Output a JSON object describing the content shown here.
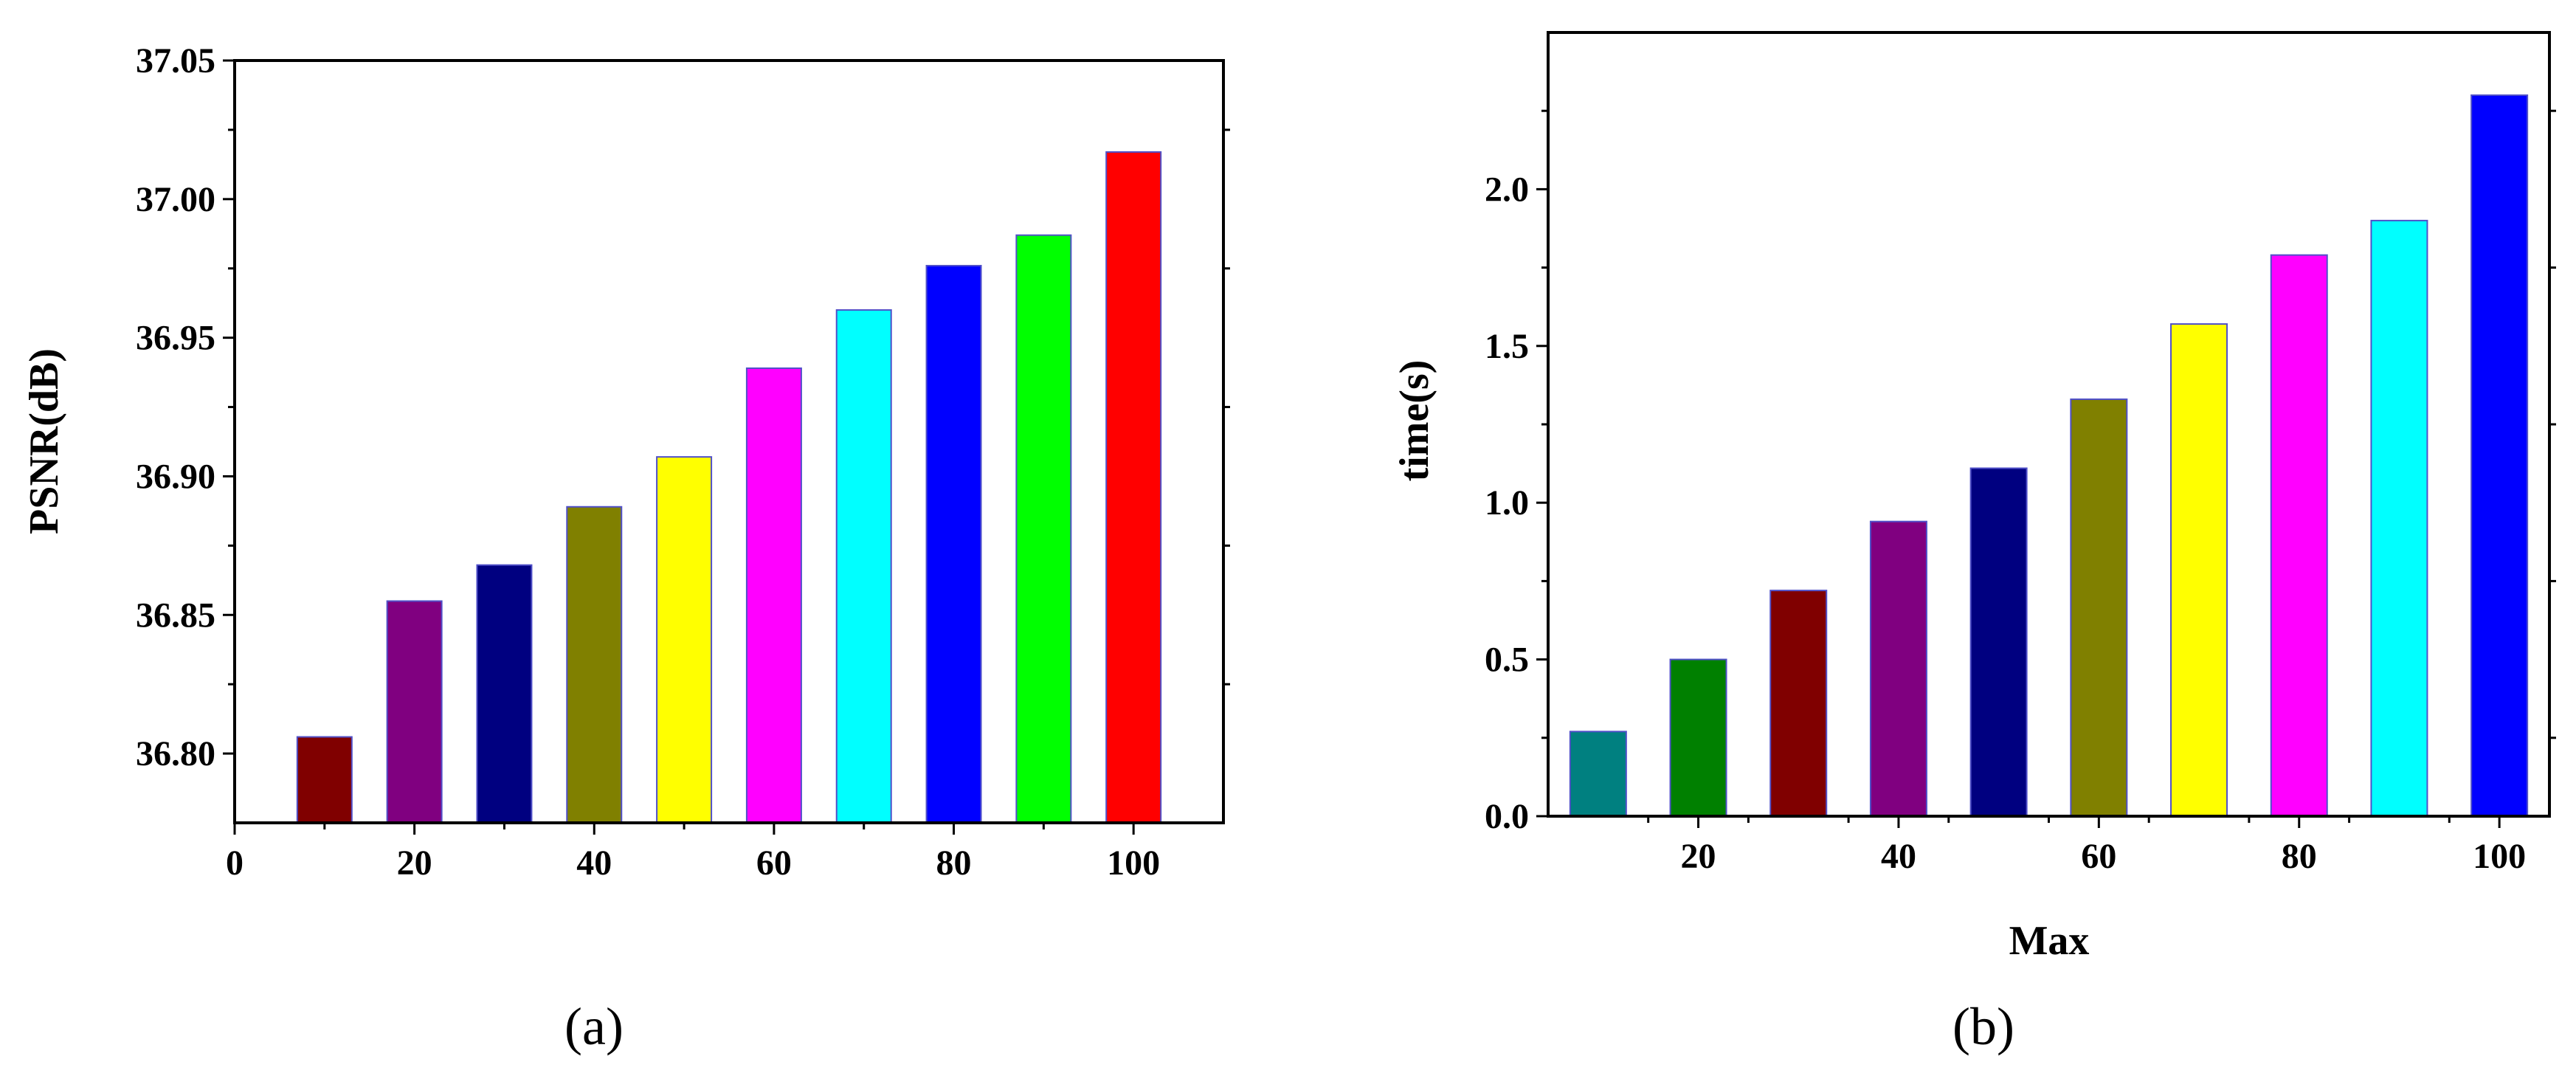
{
  "chart_data": [
    {
      "type": "bar",
      "panel_label": "(a)",
      "title": "",
      "xlabel": "",
      "ylabel": "PSNR(dB)",
      "x": [
        10,
        20,
        30,
        40,
        50,
        60,
        70,
        80,
        90,
        100
      ],
      "values": [
        36.806,
        36.855,
        36.868,
        36.889,
        36.907,
        36.939,
        36.96,
        36.976,
        36.987,
        37.017
      ],
      "colors": [
        "#800000",
        "#800080",
        "#000080",
        "#808000",
        "#ffff00",
        "#ff00ff",
        "#00ffff",
        "#0000ff",
        "#00ff00",
        "#ff0000"
      ],
      "xlim": [
        0,
        110
      ],
      "ylim": [
        36.775,
        37.05
      ],
      "xticks": [
        0,
        20,
        40,
        60,
        80,
        100
      ],
      "xtick_labels": [
        "0",
        "20",
        "40",
        "60",
        "80",
        "100"
      ],
      "yticks": [
        36.8,
        36.85,
        36.9,
        36.95,
        37.0,
        37.05
      ],
      "ytick_labels": [
        "36.80",
        "36.85",
        "36.90",
        "36.95",
        "37.00",
        "37.05"
      ],
      "grid": false,
      "legend": "none"
    },
    {
      "type": "bar",
      "panel_label": "(b)",
      "title": "",
      "xlabel": "Max",
      "ylabel": "time(s)",
      "x": [
        10,
        20,
        30,
        40,
        50,
        60,
        70,
        80,
        90,
        100
      ],
      "values": [
        0.27,
        0.5,
        0.72,
        0.94,
        1.11,
        1.33,
        1.57,
        1.79,
        1.9,
        2.3
      ],
      "colors": [
        "#008080",
        "#008000",
        "#800000",
        "#800080",
        "#000080",
        "#808000",
        "#ffff00",
        "#ff00ff",
        "#00ffff",
        "#0000ff"
      ],
      "xlim": [
        5,
        105
      ],
      "ylim": [
        0,
        2.5
      ],
      "xticks": [
        20,
        40,
        60,
        80,
        100
      ],
      "xtick_labels": [
        "20",
        "40",
        "60",
        "80",
        "100"
      ],
      "yticks": [
        0.0,
        0.5,
        1.0,
        1.5,
        2.0
      ],
      "ytick_labels": [
        "0.0",
        "0.5",
        "1.0",
        "1.5",
        "2.0"
      ],
      "grid": false,
      "legend": "none"
    }
  ]
}
